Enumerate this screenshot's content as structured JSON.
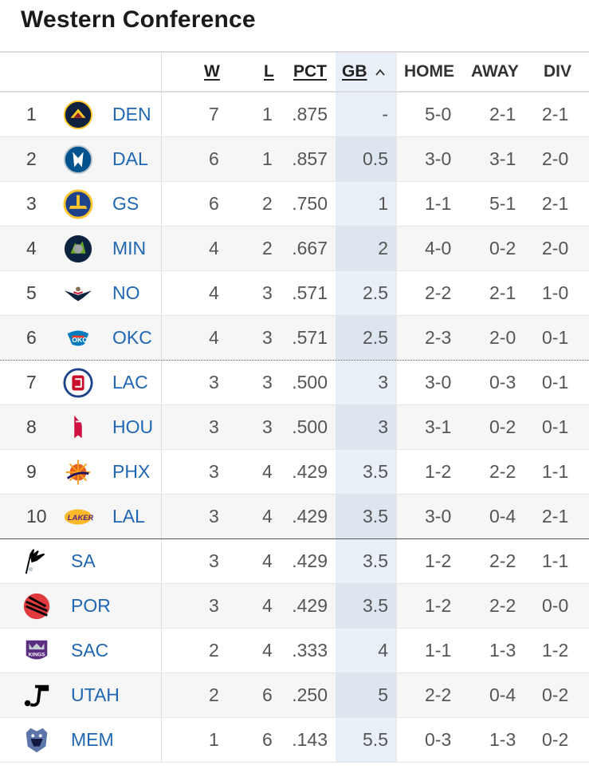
{
  "title": "Western Conference",
  "headers": {
    "w": "W",
    "l": "L",
    "pct": "PCT",
    "gb": "GB",
    "home": "HOME",
    "away": "AWAY",
    "div": "DIV"
  },
  "colors": {
    "link": "#1f66b3",
    "gb_bg": "#e9eff7"
  },
  "rows": [
    {
      "rank": "1",
      "team": "DEN",
      "logo": "nuggets-logo-icon",
      "w": "7",
      "l": "1",
      "pct": ".875",
      "gb": "-",
      "home": "5-0",
      "away": "2-1",
      "div": "2-1"
    },
    {
      "rank": "2",
      "team": "DAL",
      "logo": "mavericks-logo-icon",
      "w": "6",
      "l": "1",
      "pct": ".857",
      "gb": "0.5",
      "home": "3-0",
      "away": "3-1",
      "div": "2-0"
    },
    {
      "rank": "3",
      "team": "GS",
      "logo": "warriors-logo-icon",
      "w": "6",
      "l": "2",
      "pct": ".750",
      "gb": "1",
      "home": "1-1",
      "away": "5-1",
      "div": "2-1"
    },
    {
      "rank": "4",
      "team": "MIN",
      "logo": "timberwolves-logo-icon",
      "w": "4",
      "l": "2",
      "pct": ".667",
      "gb": "2",
      "home": "4-0",
      "away": "0-2",
      "div": "2-0"
    },
    {
      "rank": "5",
      "team": "NO",
      "logo": "pelicans-logo-icon",
      "w": "4",
      "l": "3",
      "pct": ".571",
      "gb": "2.5",
      "home": "2-2",
      "away": "2-1",
      "div": "1-0"
    },
    {
      "rank": "6",
      "team": "OKC",
      "logo": "thunder-logo-icon",
      "w": "4",
      "l": "3",
      "pct": ".571",
      "gb": "2.5",
      "home": "2-3",
      "away": "2-0",
      "div": "0-1"
    },
    {
      "rank": "7",
      "team": "LAC",
      "logo": "clippers-logo-icon",
      "w": "3",
      "l": "3",
      "pct": ".500",
      "gb": "3",
      "home": "3-0",
      "away": "0-3",
      "div": "0-1"
    },
    {
      "rank": "8",
      "team": "HOU",
      "logo": "rockets-logo-icon",
      "w": "3",
      "l": "3",
      "pct": ".500",
      "gb": "3",
      "home": "3-1",
      "away": "0-2",
      "div": "0-1"
    },
    {
      "rank": "9",
      "team": "PHX",
      "logo": "suns-logo-icon",
      "w": "3",
      "l": "4",
      "pct": ".429",
      "gb": "3.5",
      "home": "1-2",
      "away": "2-2",
      "div": "1-1"
    },
    {
      "rank": "10",
      "team": "LAL",
      "logo": "lakers-logo-icon",
      "w": "3",
      "l": "4",
      "pct": ".429",
      "gb": "3.5",
      "home": "3-0",
      "away": "0-4",
      "div": "2-1"
    },
    {
      "rank": "",
      "team": "SA",
      "logo": "spurs-logo-icon",
      "w": "3",
      "l": "4",
      "pct": ".429",
      "gb": "3.5",
      "home": "1-2",
      "away": "2-2",
      "div": "1-1"
    },
    {
      "rank": "",
      "team": "POR",
      "logo": "blazers-logo-icon",
      "w": "3",
      "l": "4",
      "pct": ".429",
      "gb": "3.5",
      "home": "1-2",
      "away": "2-2",
      "div": "0-0"
    },
    {
      "rank": "",
      "team": "SAC",
      "logo": "kings-logo-icon",
      "w": "2",
      "l": "4",
      "pct": ".333",
      "gb": "4",
      "home": "1-1",
      "away": "1-3",
      "div": "1-2"
    },
    {
      "rank": "",
      "team": "UTAH",
      "logo": "jazz-logo-icon",
      "w": "2",
      "l": "6",
      "pct": ".250",
      "gb": "5",
      "home": "2-2",
      "away": "0-4",
      "div": "0-2"
    },
    {
      "rank": "",
      "team": "MEM",
      "logo": "grizzlies-logo-icon",
      "w": "1",
      "l": "6",
      "pct": ".143",
      "gb": "5.5",
      "home": "0-3",
      "away": "1-3",
      "div": "0-2"
    }
  ]
}
